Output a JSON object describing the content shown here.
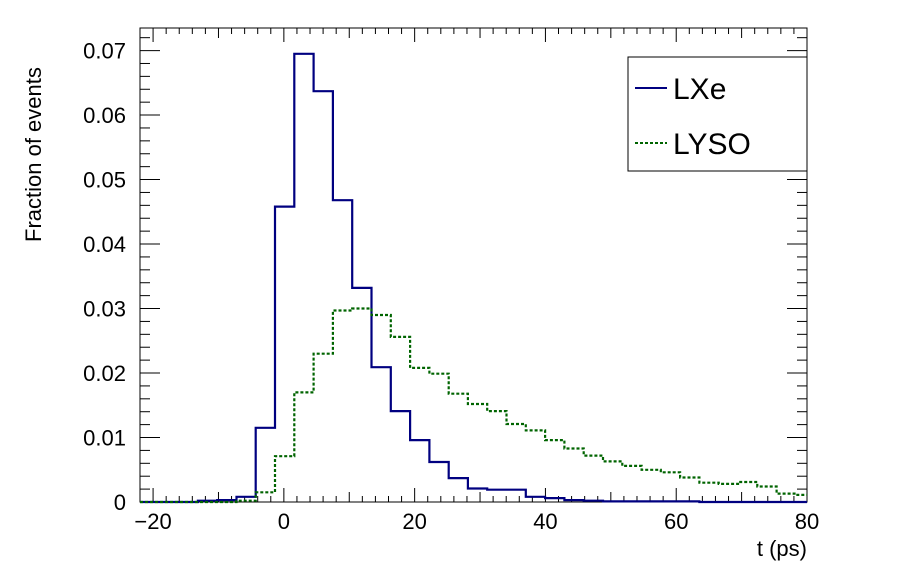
{
  "chart_data": {
    "type": "line",
    "style": "step-histogram",
    "xlabel": "t (ps)",
    "ylabel": "Fraction of events",
    "xlim": [
      -22,
      80
    ],
    "ylim": [
      0,
      0.0735
    ],
    "x_ticks": [
      -20,
      0,
      20,
      40,
      60,
      80
    ],
    "y_ticks": [
      0,
      0.01,
      0.02,
      0.03,
      0.04,
      0.05,
      0.06,
      0.07
    ],
    "x_tick_labels": [
      "−20",
      "0",
      "20",
      "40",
      "60",
      "80"
    ],
    "y_tick_labels": [
      "0",
      "0.01",
      "0.02",
      "0.03",
      "0.04",
      "0.05",
      "0.06",
      "0.07"
    ],
    "bin_width": 2.95,
    "grid": false,
    "legend_position": "top-right",
    "series": [
      {
        "name": "LXe",
        "color": "#000080",
        "line_style": "solid",
        "values": [
          0,
          0,
          0,
          0.0002,
          0.0003,
          0.0008,
          0.0115,
          0.0458,
          0.0695,
          0.0637,
          0.0468,
          0.0332,
          0.0209,
          0.0141,
          0.0096,
          0.0062,
          0.0037,
          0.0021,
          0.0019,
          0.0019,
          0.0008,
          0.0006,
          0.0003,
          0.0002,
          0.0001,
          0.0001,
          0.0001,
          0.0001,
          0.0001,
          0,
          0,
          0,
          0,
          0,
          0
        ]
      },
      {
        "name": "LYSO",
        "color": "#006400",
        "line_style": "dotted",
        "values": [
          0,
          0,
          0,
          0,
          0,
          0.0002,
          0.0015,
          0.0071,
          0.017,
          0.023,
          0.0297,
          0.03,
          0.029,
          0.0256,
          0.0208,
          0.0199,
          0.0168,
          0.0152,
          0.0141,
          0.0121,
          0.0111,
          0.0096,
          0.0083,
          0.0072,
          0.0063,
          0.0056,
          0.005,
          0.0046,
          0.0038,
          0.003,
          0.0028,
          0.0031,
          0.0024,
          0.0013,
          0.0011
        ]
      }
    ]
  }
}
